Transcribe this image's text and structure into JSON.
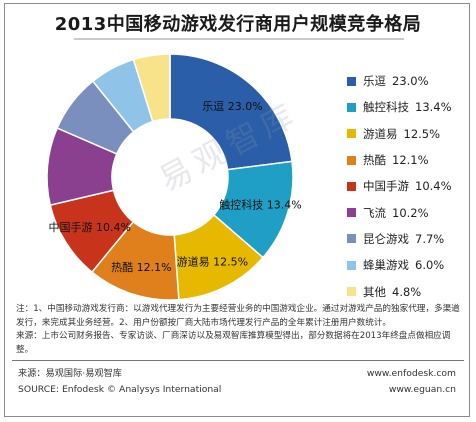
{
  "title": "2013中国移动游戏发行商用户规模竞争格局",
  "chart_data": {
    "type": "pie",
    "title": "2013中国移动游戏发行商用户规模竞争格局",
    "unit": "%",
    "categories": [
      "乐逗",
      "触控科技",
      "游道易",
      "热酷",
      "中国手游",
      "飞流",
      "昆仑游戏",
      "蜂巢游戏",
      "其他"
    ],
    "values": [
      23.0,
      13.4,
      12.5,
      12.1,
      10.4,
      10.2,
      7.7,
      6.0,
      4.8
    ],
    "labels": [
      "23.0%",
      "13.4%",
      "12.5%",
      "12.1%",
      "10.4%",
      "10.2%",
      "7.7%",
      "6.0%",
      "4.8%"
    ],
    "colors": [
      "#2b5ea8",
      "#1f9fc5",
      "#e6b800",
      "#e0801c",
      "#c7341b",
      "#8a3f8f",
      "#7b8fbf",
      "#8fc4e8",
      "#f9e38a"
    ],
    "donut": true,
    "inner_labels_shown": 5,
    "legend_position": "right"
  },
  "notes": {
    "line1": "注：1、中国移动游戏发行商：以游戏代理发行为主要经营业务的中国游戏企业。通过对游戏产品的独家代理，多渠道发行，来完成其业务经营。2、用户份额按厂商大陆市场代理发行产品的全年累计注册用户数统计。",
    "line2": "来源：上市公司财务报告、专家访谈、厂商深访以及易观智库推算模型得出，部分数据将在2013年终盘点做相应调整。"
  },
  "footer": {
    "source_cn": "来源：易观国际·易观智库",
    "source_en": "SOURCE: Enfodesk © Analysys International",
    "url1": "www.enfodesk.com",
    "url2": "www.eguan.cn"
  },
  "watermark": "易观智库"
}
